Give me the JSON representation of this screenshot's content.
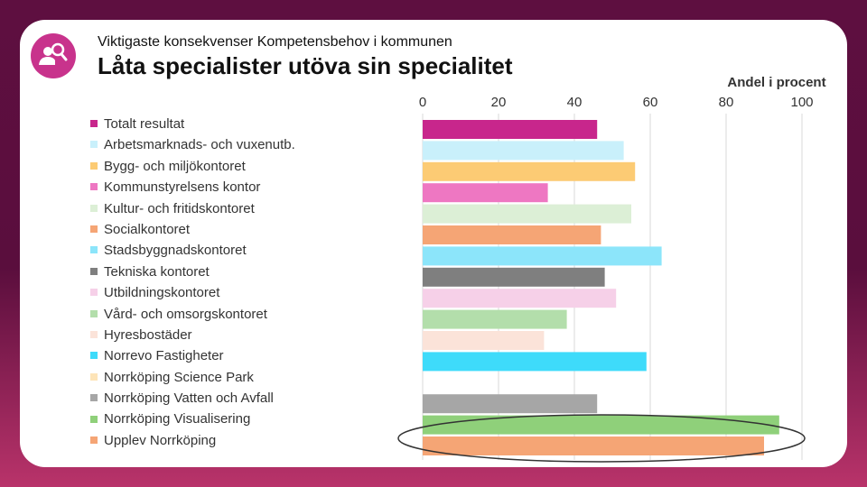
{
  "header": {
    "subtitle": "Viktigaste konsekvenser Kompetensbehov i kommunen",
    "title": "Låta specialister utöva sin specialitet",
    "logo_icon": "people-search-icon"
  },
  "chart_data": {
    "type": "bar",
    "orientation": "horizontal",
    "unit_label": "Andel i procent",
    "xlim": [
      0,
      100
    ],
    "xticks": [
      "0",
      "20",
      "40",
      "60",
      "80",
      "100"
    ],
    "grid": true,
    "legend_position": "left",
    "series": [
      {
        "name": "Totalt resultat",
        "value": 46,
        "color": "#c8268c"
      },
      {
        "name": "Arbetsmarknads- och vuxenutb.",
        "value": 53,
        "color": "#c9f0fb"
      },
      {
        "name": "Bygg- och miljökontoret",
        "value": 56,
        "color": "#fccb74"
      },
      {
        "name": "Kommunstyrelsens kontor",
        "value": 33,
        "color": "#ee77c2"
      },
      {
        "name": "Kultur- och fritidskontoret",
        "value": 55,
        "color": "#dcefd6"
      },
      {
        "name": "Socialkontoret",
        "value": 47,
        "color": "#f5a575"
      },
      {
        "name": "Stadsbyggnadskontoret",
        "value": 63,
        "color": "#8ce5fa"
      },
      {
        "name": "Tekniska kontoret",
        "value": 48,
        "color": "#7f7f7f"
      },
      {
        "name": "Utbildningskontoret",
        "value": 51,
        "color": "#f6d0e8"
      },
      {
        "name": "Vård- och omsorgskontoret",
        "value": 38,
        "color": "#b3deab"
      },
      {
        "name": "Hyresbostäder",
        "value": 32,
        "color": "#fbe3d9"
      },
      {
        "name": "Norrevo Fastigheter",
        "value": 59,
        "color": "#3edbfa"
      },
      {
        "name": "Norrköping Science Park",
        "value": 0,
        "color": "#fde4b8"
      },
      {
        "name": "Norrköping Vatten och Avfall",
        "value": 46,
        "color": "#a6a6a6"
      },
      {
        "name": "Norrköping Visualisering",
        "value": 94,
        "color": "#8fd07a"
      },
      {
        "name": "Upplev Norrköping",
        "value": 90,
        "color": "#f5a575"
      }
    ],
    "highlight": "Upplev Norrköping"
  }
}
